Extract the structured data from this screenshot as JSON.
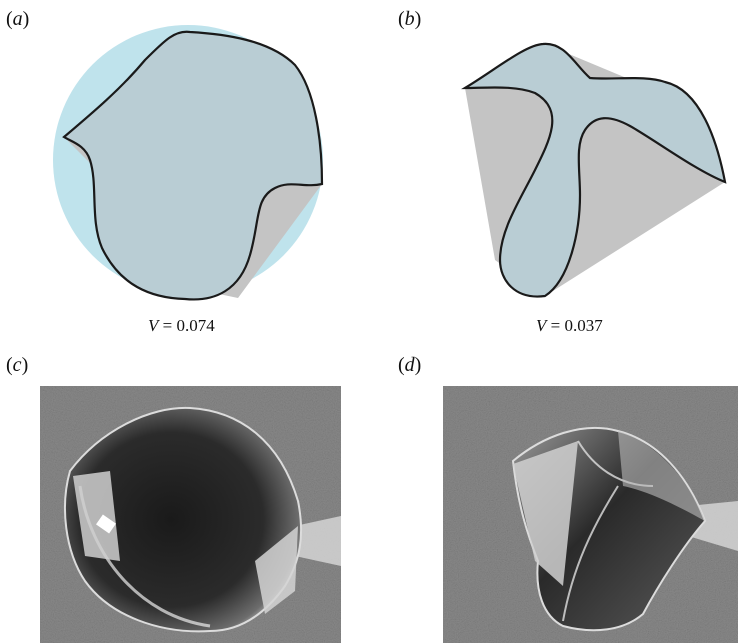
{
  "panels": [
    {
      "id": "a",
      "label_open": "(",
      "label_letter": "a",
      "label_close": ")",
      "caption_var": "V",
      "caption_rest": " = 0.074"
    },
    {
      "id": "b",
      "label_open": "(",
      "label_letter": "b",
      "label_close": ")",
      "caption_var": "V",
      "caption_rest": " = 0.037"
    },
    {
      "id": "c",
      "label_open": "(",
      "label_letter": "c",
      "label_close": ")"
    },
    {
      "id": "d",
      "label_open": "(",
      "label_letter": "d",
      "label_close": ")"
    }
  ],
  "colors": {
    "droplet_fill": "#b9cdd4",
    "cap_fill": "#bfe3ec",
    "shadow_fill": "#c4c4c4",
    "outline": "#1a1a1a",
    "photo_background": "#8a8a8a"
  }
}
